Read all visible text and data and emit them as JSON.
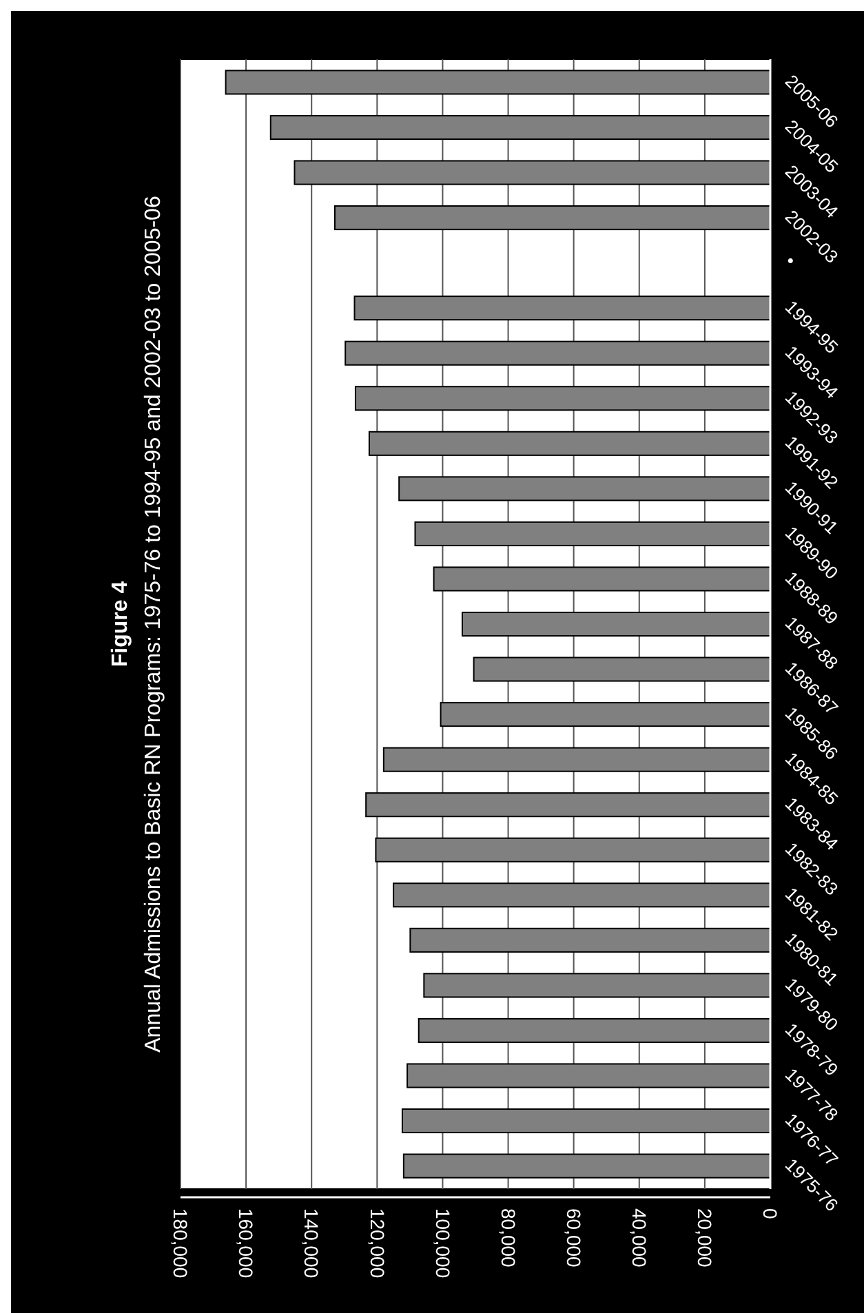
{
  "chart_data": {
    "type": "bar",
    "orientation": "horizontal",
    "title": "Figure 4",
    "subtitle": "Annual Admissions to Basic RN Programs: 1975-76 to 1994-95 and 2002-03 to 2005-06",
    "categories": [
      "2005-06",
      "2004-05",
      "2003-04",
      "2002-03",
      "•",
      "1994-95",
      "1993-94",
      "1992-93",
      "1991-92",
      "1990-91",
      "1989-90",
      "1988-89",
      "1987-88",
      "1986-87",
      "1985-86",
      "1984-85",
      "1983-84",
      "1982-83",
      "1981-82",
      "1980-81",
      "1979-80",
      "1978-79",
      "1977-78",
      "1976-77",
      "1975-76"
    ],
    "values": [
      166200,
      152500,
      145200,
      132900,
      null,
      126900,
      129700,
      126600,
      122400,
      113300,
      108400,
      102700,
      94000,
      90500,
      100600,
      118000,
      123400,
      120400,
      115000,
      109900,
      105700,
      107300,
      110800,
      112300,
      111900
    ],
    "color": "#808080",
    "xlim": [
      180000,
      0
    ],
    "xticks": [
      {
        "value": 180000,
        "label": "180,000"
      },
      {
        "value": 160000,
        "label": "160,000"
      },
      {
        "value": 140000,
        "label": "140,000"
      },
      {
        "value": 120000,
        "label": "120,000"
      },
      {
        "value": 100000,
        "label": "100,000"
      },
      {
        "value": 80000,
        "label": "80,000"
      },
      {
        "value": 60000,
        "label": "60,000"
      },
      {
        "value": 40000,
        "label": "40,000"
      },
      {
        "value": 20000,
        "label": "20,000"
      },
      0
    ],
    "grid": "x"
  }
}
